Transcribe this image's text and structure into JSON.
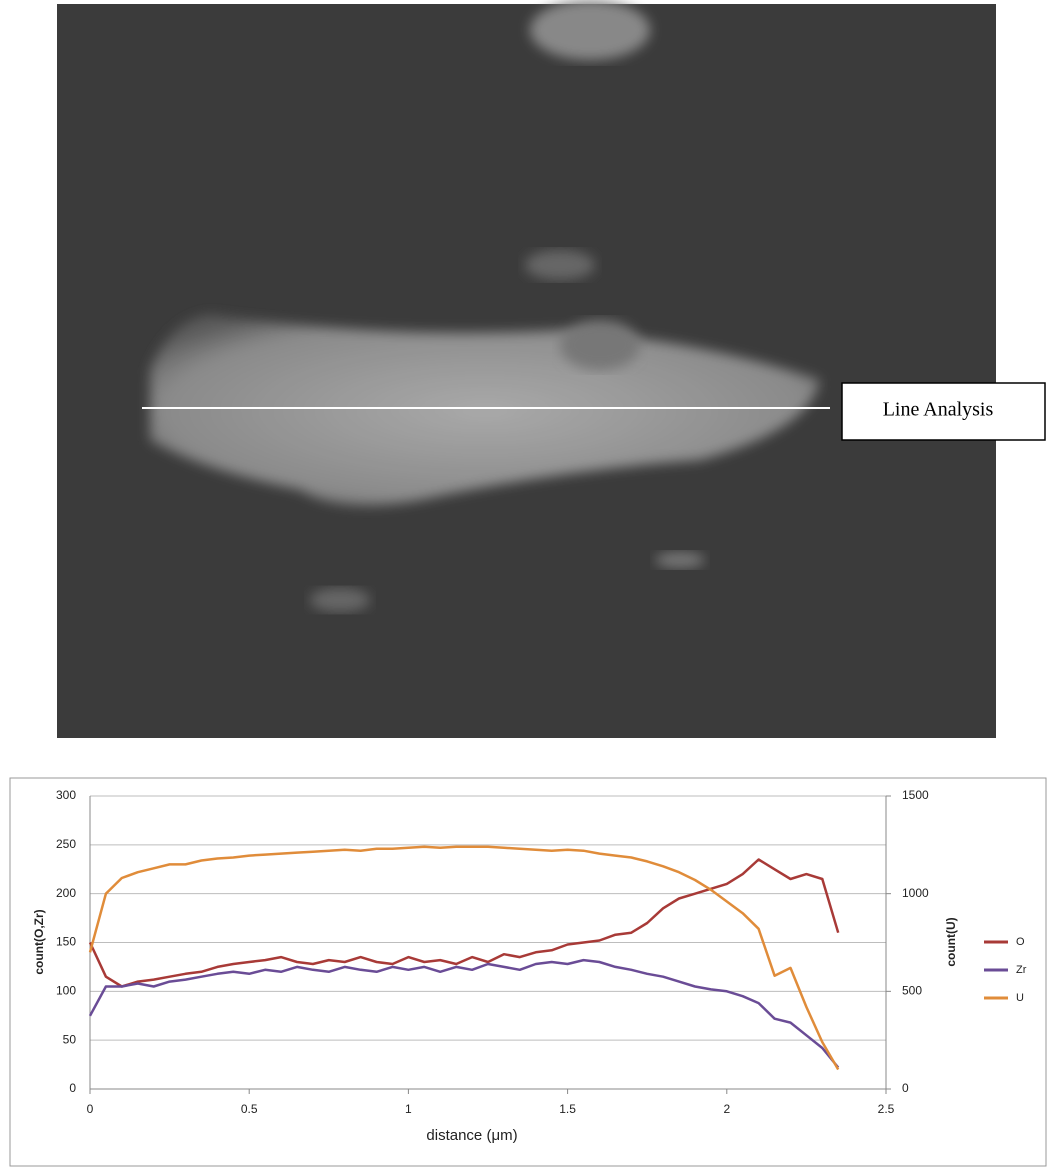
{
  "image": {
    "label": "Line Analysis"
  },
  "chart_data": {
    "type": "line",
    "x": [
      0,
      0.05,
      0.1,
      0.15,
      0.2,
      0.25,
      0.3,
      0.35,
      0.4,
      0.45,
      0.5,
      0.55,
      0.6,
      0.65,
      0.7,
      0.75,
      0.8,
      0.85,
      0.9,
      0.95,
      1,
      1.05,
      1.1,
      1.15,
      1.2,
      1.25,
      1.3,
      1.35,
      1.4,
      1.45,
      1.5,
      1.55,
      1.6,
      1.65,
      1.7,
      1.75,
      1.8,
      1.85,
      1.9,
      1.95,
      2,
      2.05,
      2.1,
      2.15,
      2.2,
      2.25,
      2.3,
      2.35
    ],
    "series": [
      {
        "name": "O",
        "color": "#a83a37",
        "values": [
          150,
          115,
          105,
          110,
          112,
          115,
          118,
          120,
          125,
          128,
          130,
          132,
          135,
          130,
          128,
          132,
          130,
          135,
          130,
          128,
          135,
          130,
          132,
          128,
          135,
          130,
          138,
          135,
          140,
          142,
          148,
          150,
          152,
          158,
          160,
          170,
          185,
          195,
          200,
          205,
          210,
          220,
          235,
          225,
          215,
          220,
          215,
          160
        ]
      },
      {
        "name": "Zr",
        "color": "#6a4c96",
        "values": [
          75,
          105,
          105,
          108,
          105,
          110,
          112,
          115,
          118,
          120,
          118,
          122,
          120,
          125,
          122,
          120,
          125,
          122,
          120,
          125,
          122,
          125,
          120,
          125,
          122,
          128,
          125,
          122,
          128,
          130,
          128,
          132,
          130,
          125,
          122,
          118,
          115,
          110,
          105,
          102,
          100,
          95,
          88,
          72,
          68,
          55,
          42,
          22
        ]
      },
      {
        "name": "U",
        "color": "#e08c3a",
        "axis": "y2",
        "values": [
          700,
          1000,
          1080,
          1110,
          1130,
          1150,
          1150,
          1170,
          1180,
          1185,
          1195,
          1200,
          1205,
          1210,
          1215,
          1220,
          1225,
          1220,
          1230,
          1230,
          1235,
          1240,
          1235,
          1240,
          1240,
          1240,
          1235,
          1230,
          1225,
          1220,
          1225,
          1220,
          1205,
          1195,
          1185,
          1165,
          1140,
          1110,
          1070,
          1020,
          960,
          900,
          820,
          580,
          620,
          420,
          240,
          100
        ]
      }
    ],
    "xlabel": "distance   (μm)",
    "ylabel": "count(O,Zr)",
    "y2label": "count(U)",
    "xlim": [
      0,
      2.5
    ],
    "xticks": [
      0,
      0.5,
      1,
      1.5,
      2,
      2.5
    ],
    "ylim": [
      0,
      300
    ],
    "yticks": [
      0,
      50,
      100,
      150,
      200,
      250,
      300
    ],
    "y2lim": [
      0,
      1500
    ],
    "y2ticks": [
      0,
      500,
      1000,
      1500
    ],
    "grid": true,
    "legend": "right"
  }
}
